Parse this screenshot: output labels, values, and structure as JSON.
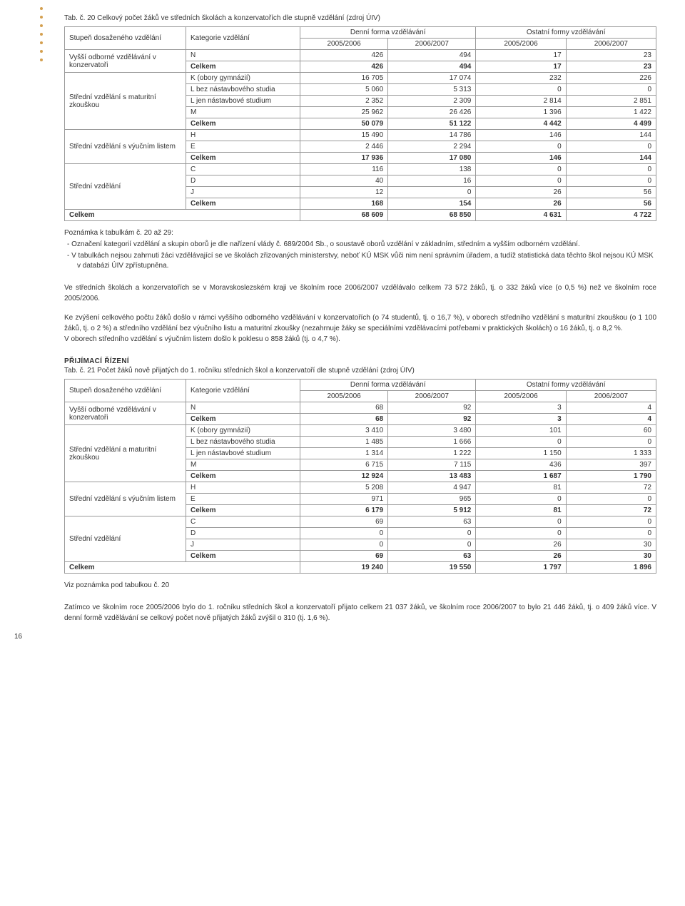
{
  "decor": {
    "dot_color": "#d4a050"
  },
  "page_number": "16",
  "table1": {
    "caption": "Tab. č. 20  Celkový počet žáků ve středních školách a konzervatořích dle stupně vzdělání (zdroj ÚIV)",
    "headers": {
      "stupen": "Stupeň dosaženého vzdělání",
      "kategorie": "Kategorie vzdělání",
      "denni": "Denní forma vzdělávání",
      "ostatni": "Ostatní formy vzdělávání",
      "y1": "2005/2006",
      "y2": "2006/2007",
      "y3": "2005/2006",
      "y4": "2006/2007"
    },
    "rows": [
      {
        "g": "Vyšší odborné vzdělávání v konzervatoři",
        "k": "N",
        "v": [
          "426",
          "494",
          "17",
          "23"
        ]
      },
      {
        "g": "",
        "k": "Celkem",
        "v": [
          "426",
          "494",
          "17",
          "23"
        ],
        "bold": true
      },
      {
        "g": "Střední vzdělání s maturitní zkouškou",
        "k": "K (obory gymnázií)",
        "v": [
          "16 705",
          "17 074",
          "232",
          "226"
        ]
      },
      {
        "g": "",
        "k": "L bez nástavbového studia",
        "v": [
          "5 060",
          "5 313",
          "0",
          "0"
        ]
      },
      {
        "g": "",
        "k": "L jen nástavbové studium",
        "v": [
          "2 352",
          "2 309",
          "2 814",
          "2 851"
        ]
      },
      {
        "g": "",
        "k": "M",
        "v": [
          "25 962",
          "26 426",
          "1 396",
          "1 422"
        ]
      },
      {
        "g": "",
        "k": "Celkem",
        "v": [
          "50 079",
          "51 122",
          "4 442",
          "4 499"
        ],
        "bold": true
      },
      {
        "g": "Střední vzdělání s výučním listem",
        "k": "H",
        "v": [
          "15 490",
          "14 786",
          "146",
          "144"
        ]
      },
      {
        "g": "",
        "k": "E",
        "v": [
          "2 446",
          "2 294",
          "0",
          "0"
        ]
      },
      {
        "g": "",
        "k": "Celkem",
        "v": [
          "17 936",
          "17 080",
          "146",
          "144"
        ],
        "bold": true
      },
      {
        "g": "Střední vzdělání",
        "k": "C",
        "v": [
          "116",
          "138",
          "0",
          "0"
        ]
      },
      {
        "g": "",
        "k": "D",
        "v": [
          "40",
          "16",
          "0",
          "0"
        ]
      },
      {
        "g": "",
        "k": "J",
        "v": [
          "12",
          "0",
          "26",
          "56"
        ]
      },
      {
        "g": "",
        "k": "Celkem",
        "v": [
          "168",
          "154",
          "26",
          "56"
        ],
        "bold": true
      }
    ],
    "total": {
      "label": "Celkem",
      "v": [
        "68 609",
        "68 850",
        "4 631",
        "4 722"
      ]
    }
  },
  "notes1": {
    "head": "Poznámka k tabulkám č. 20 až 29:",
    "l1": "Označení kategorií vzdělání a skupin oborů je dle nařízení vlády č. 689/2004 Sb., o soustavě oborů vzdělání v základním, středním a vyšším odborném vzdělání.",
    "l2": "V tabulkách nejsou zahrnuti žáci vzdělávající se ve školách zřizovaných ministerstvy, neboť KÚ MSK vůči nim není správním úřadem, a tudíž statistická data těchto škol nejsou KÚ MSK v databázi ÚIV zpřístupněna."
  },
  "para1": "Ve středních školách a konzervatořích se v Moravskoslezském kraji ve školním roce 2006/2007 vzdělávalo celkem 73 572 žáků, tj. o 332 žáků více (o 0,5 %) než ve školním roce 2005/2006.",
  "para2": "Ke zvýšení celkového počtu žáků došlo v rámci vyššího odborného vzdělávání v konzervatořích (o 74 studentů, tj. o 16,7 %), v oborech středního vzdělání s maturitní zkouškou (o 1 100 žáků, tj. o 2 %) a středního vzdělání bez výučního listu a maturitní zkoušky (nezahrnuje žáky se speciálními vzdělávacími potřebami v praktických školách) o 16 žáků, tj. o 8,2 %.",
  "para2b": "V oborech středního vzdělání s výučním listem došlo k poklesu o 858 žáků (tj. o 4,7 %).",
  "section_head": "PŘIJÍMACÍ ŘÍZENÍ",
  "table2": {
    "caption": "Tab. č. 21  Počet žáků nově přijatých do 1. ročníku středních škol a konzervatoří dle stupně vzdělání (zdroj ÚIV)",
    "headers": {
      "stupen": "Stupeň dosaženého vzdělání",
      "kategorie": "Kategorie vzdělání",
      "denni": "Denní forma vzdělávání",
      "ostatni": "Ostatní formy vzdělávání",
      "y1": "2005/2006",
      "y2": "2006/2007",
      "y3": "2005/2006",
      "y4": "2006/2007"
    },
    "rows": [
      {
        "g": "Vyšší odborné vzdělávání v konzervatoři",
        "k": "N",
        "v": [
          "68",
          "92",
          "3",
          "4"
        ]
      },
      {
        "g": "",
        "k": "Celkem",
        "v": [
          "68",
          "92",
          "3",
          "4"
        ],
        "bold": true
      },
      {
        "g": "Střední vzdělání a maturitní zkouškou",
        "k": "K (obory gymnázií)",
        "v": [
          "3 410",
          "3 480",
          "101",
          "60"
        ]
      },
      {
        "g": "",
        "k": "L bez nástavbového studia",
        "v": [
          "1 485",
          "1 666",
          "0",
          "0"
        ]
      },
      {
        "g": "",
        "k": "L jen nástavbové studium",
        "v": [
          "1 314",
          "1 222",
          "1 150",
          "1 333"
        ]
      },
      {
        "g": "",
        "k": "M",
        "v": [
          "6 715",
          "7 115",
          "436",
          "397"
        ]
      },
      {
        "g": "",
        "k": "Celkem",
        "v": [
          "12 924",
          "13 483",
          "1 687",
          "1 790"
        ],
        "bold": true
      },
      {
        "g": "Střední vzdělání s výučním listem",
        "k": "H",
        "v": [
          "5 208",
          "4 947",
          "81",
          "72"
        ]
      },
      {
        "g": "",
        "k": "E",
        "v": [
          "971",
          "965",
          "0",
          "0"
        ]
      },
      {
        "g": "",
        "k": "Celkem",
        "v": [
          "6 179",
          "5 912",
          "81",
          "72"
        ],
        "bold": true
      },
      {
        "g": "Střední vzdělání",
        "k": "C",
        "v": [
          "69",
          "63",
          "0",
          "0"
        ]
      },
      {
        "g": "",
        "k": "D",
        "v": [
          "0",
          "0",
          "0",
          "0"
        ]
      },
      {
        "g": "",
        "k": "J",
        "v": [
          "0",
          "0",
          "26",
          "30"
        ]
      },
      {
        "g": "",
        "k": "Celkem",
        "v": [
          "69",
          "63",
          "26",
          "30"
        ],
        "bold": true
      }
    ],
    "total": {
      "label": "Celkem",
      "v": [
        "19 240",
        "19 550",
        "1 797",
        "1 896"
      ]
    }
  },
  "note2": "Viz poznámka pod tabulkou č. 20",
  "para3": "Zatímco ve školním roce 2005/2006 bylo do 1. ročníku středních škol a konzervatoří přijato celkem 21 037 žáků, ve školním roce 2006/2007 to bylo 21 446 žáků, tj. o 409 žáků více. V denní formě vzdělávání se celkový počet nově přijatých žáků zvýšil o 310 (tj. 1,6 %)."
}
